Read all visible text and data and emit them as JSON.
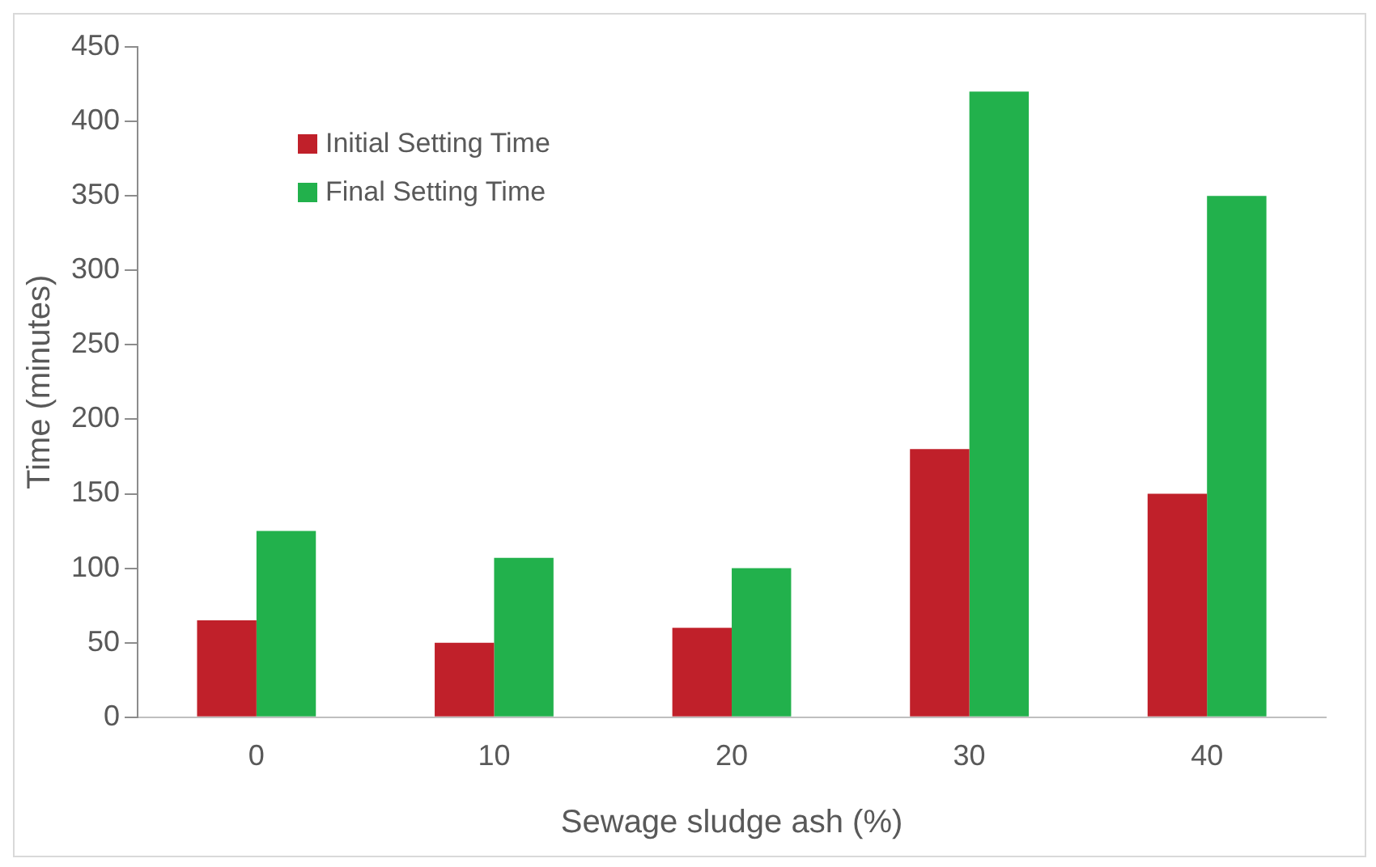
{
  "chart_data": {
    "type": "bar",
    "xlabel": "Sewage sludge ash (%)",
    "ylabel": "Time (minutes)",
    "categories": [
      "0",
      "10",
      "20",
      "30",
      "40"
    ],
    "series": [
      {
        "name": "Initial Setting Time",
        "color": "#c0202a",
        "values": [
          65,
          50,
          60,
          180,
          150
        ]
      },
      {
        "name": "Final Setting Time",
        "color": "#22b14c",
        "values": [
          125,
          107,
          100,
          420,
          350
        ]
      }
    ],
    "ylim": [
      0,
      450
    ],
    "yticks": [
      0,
      50,
      100,
      150,
      200,
      250,
      300,
      350,
      400,
      450
    ],
    "grid": false,
    "legend": "top left"
  }
}
